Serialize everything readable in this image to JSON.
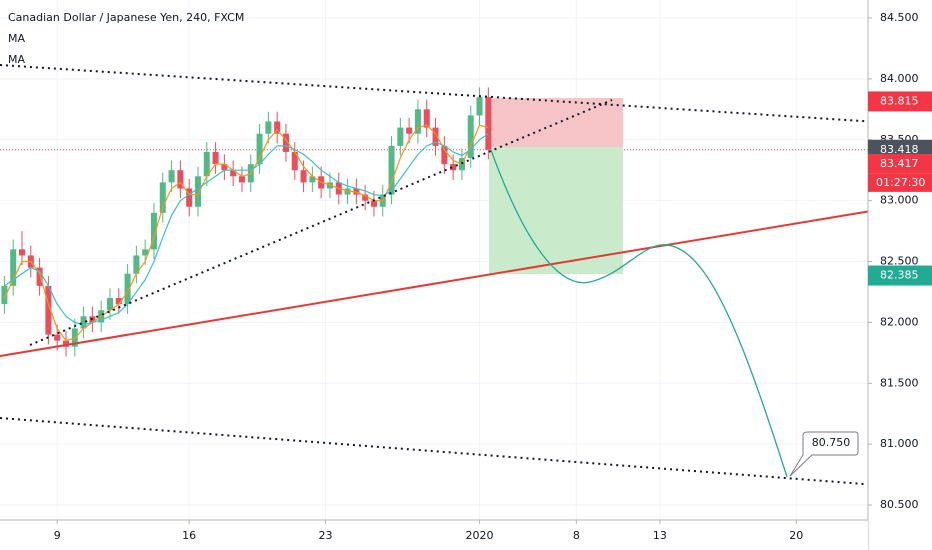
{
  "chart_data": {
    "type": "candlestick",
    "title": "Canadian Dollar / Japanese Yen, 240, FXCM",
    "indicators": [
      "MA",
      "MA"
    ],
    "x": [
      1,
      3,
      5,
      7,
      9,
      11,
      13,
      15,
      17,
      19,
      21,
      23,
      25,
      27,
      29,
      31,
      33,
      35,
      37,
      39,
      41,
      43,
      45,
      47,
      49,
      51,
      53,
      55,
      57,
      59,
      61,
      63,
      65,
      67,
      69,
      71,
      73,
      75,
      77,
      79,
      81,
      83,
      85,
      87,
      89,
      91,
      93,
      95,
      97,
      99,
      101,
      103,
      105,
      107,
      109,
      111
    ],
    "candles": [
      [
        82.15,
        82.38,
        82.07,
        82.3
      ],
      [
        82.3,
        82.68,
        82.22,
        82.6
      ],
      [
        82.6,
        82.75,
        82.47,
        82.55
      ],
      [
        82.55,
        82.63,
        82.37,
        82.45
      ],
      [
        82.45,
        82.53,
        82.22,
        82.3
      ],
      [
        82.3,
        82.38,
        81.82,
        81.9
      ],
      [
        81.9,
        81.98,
        81.77,
        81.85
      ],
      [
        81.85,
        81.93,
        81.72,
        81.8
      ],
      [
        81.8,
        82.03,
        81.72,
        81.95
      ],
      [
        81.95,
        82.13,
        81.87,
        82.05
      ],
      [
        82.05,
        82.13,
        81.92,
        82.0
      ],
      [
        82.0,
        82.18,
        81.92,
        82.1
      ],
      [
        82.1,
        82.28,
        82.02,
        82.2
      ],
      [
        82.2,
        82.28,
        82.07,
        82.15
      ],
      [
        82.15,
        82.48,
        82.07,
        82.4
      ],
      [
        82.4,
        82.63,
        82.32,
        82.55
      ],
      [
        82.55,
        82.68,
        82.47,
        82.6
      ],
      [
        82.6,
        82.98,
        82.52,
        82.9
      ],
      [
        82.9,
        83.23,
        82.82,
        83.15
      ],
      [
        83.15,
        83.33,
        83.07,
        83.25
      ],
      [
        83.25,
        83.33,
        83.02,
        83.1
      ],
      [
        83.1,
        83.18,
        82.87,
        82.95
      ],
      [
        82.95,
        83.28,
        82.87,
        83.2
      ],
      [
        83.2,
        83.48,
        83.12,
        83.4
      ],
      [
        83.4,
        83.48,
        83.22,
        83.3
      ],
      [
        83.3,
        83.38,
        83.17,
        83.25
      ],
      [
        83.25,
        83.33,
        83.12,
        83.2
      ],
      [
        83.2,
        83.28,
        83.07,
        83.15
      ],
      [
        83.15,
        83.38,
        83.07,
        83.3
      ],
      [
        83.3,
        83.63,
        83.22,
        83.55
      ],
      [
        83.55,
        83.73,
        83.47,
        83.65
      ],
      [
        83.65,
        83.73,
        83.47,
        83.55
      ],
      [
        83.55,
        83.63,
        83.32,
        83.4
      ],
      [
        83.4,
        83.48,
        83.17,
        83.25
      ],
      [
        83.25,
        83.33,
        83.07,
        83.15
      ],
      [
        83.15,
        83.28,
        83.07,
        83.2
      ],
      [
        83.2,
        83.28,
        83.02,
        83.1
      ],
      [
        83.1,
        83.23,
        83.02,
        83.15
      ],
      [
        83.15,
        83.23,
        82.97,
        83.05
      ],
      [
        83.05,
        83.18,
        82.97,
        83.1
      ],
      [
        83.1,
        83.18,
        82.97,
        83.05
      ],
      [
        83.05,
        83.13,
        82.92,
        83.0
      ],
      [
        83.0,
        83.08,
        82.87,
        82.95
      ],
      [
        82.95,
        83.13,
        82.87,
        83.05
      ],
      [
        83.05,
        83.53,
        82.97,
        83.45
      ],
      [
        83.45,
        83.68,
        83.37,
        83.6
      ],
      [
        83.6,
        83.68,
        83.47,
        83.55
      ],
      [
        83.55,
        83.83,
        83.47,
        83.75
      ],
      [
        83.75,
        83.83,
        83.52,
        83.6
      ],
      [
        83.6,
        83.68,
        83.37,
        83.45
      ],
      [
        83.45,
        83.53,
        83.22,
        83.3
      ],
      [
        83.3,
        83.38,
        83.17,
        83.25
      ],
      [
        83.25,
        83.43,
        83.17,
        83.35
      ],
      [
        83.35,
        83.78,
        83.27,
        83.7
      ],
      [
        83.7,
        83.93,
        83.62,
        83.85
      ],
      [
        83.85,
        83.93,
        83.34,
        83.418
      ]
    ],
    "up_color": "#53b987",
    "down_color": "#eb4d5c",
    "series": [
      {
        "color": "#f7931a",
        "values": [
          82.2,
          82.35,
          82.5,
          82.5,
          82.4,
          82.15,
          81.95,
          81.85,
          81.87,
          81.95,
          82.0,
          82.05,
          82.1,
          82.15,
          82.25,
          82.4,
          82.5,
          82.7,
          82.95,
          83.1,
          83.15,
          83.05,
          83.05,
          83.2,
          83.3,
          83.3,
          83.25,
          83.2,
          83.22,
          83.35,
          83.5,
          83.58,
          83.5,
          83.4,
          83.28,
          83.2,
          83.15,
          83.13,
          83.1,
          83.08,
          83.07,
          83.04,
          83.0,
          83.0,
          83.15,
          83.35,
          83.5,
          83.6,
          83.62,
          83.55,
          83.42,
          83.33,
          83.3,
          83.45,
          83.62,
          83.6
        ]
      },
      {
        "color": "#3cc0c9",
        "values": [
          82.3,
          82.35,
          82.4,
          82.45,
          82.42,
          82.3,
          82.15,
          82.05,
          82.0,
          81.98,
          82.0,
          82.02,
          82.05,
          82.08,
          82.15,
          82.25,
          82.35,
          82.5,
          82.7,
          82.88,
          83.0,
          83.05,
          83.1,
          83.15,
          83.2,
          83.25,
          83.25,
          83.25,
          83.25,
          83.3,
          83.38,
          83.45,
          83.45,
          83.42,
          83.38,
          83.32,
          83.25,
          83.2,
          83.15,
          83.12,
          83.1,
          83.08,
          83.05,
          83.04,
          83.08,
          83.18,
          83.28,
          83.38,
          83.45,
          83.48,
          83.45,
          83.4,
          83.37,
          83.42,
          83.5,
          83.55
        ]
      }
    ],
    "xlim": [
      0,
      197.3
    ],
    "xticks": [
      {
        "value": 13,
        "label": "9"
      },
      {
        "value": 43,
        "label": "16"
      },
      {
        "value": 74,
        "label": "23"
      },
      {
        "value": 109,
        "label": "2020"
      },
      {
        "value": 131,
        "label": "8"
      },
      {
        "value": 150,
        "label": "13"
      },
      {
        "value": 181,
        "label": "20"
      }
    ],
    "ylim": [
      80.377,
      84.648
    ],
    "yticks": [
      {
        "value": 84.5,
        "label": "84.500"
      },
      {
        "value": 84.0,
        "label": "84.000"
      },
      {
        "value": 83.5,
        "label": "83.500"
      },
      {
        "value": 83.0,
        "label": "83.000"
      },
      {
        "value": 82.5,
        "label": "82.500"
      },
      {
        "value": 82.0,
        "label": "82.000"
      },
      {
        "value": 81.5,
        "label": "81.500"
      },
      {
        "value": 81.0,
        "label": "81.000"
      },
      {
        "value": 80.5,
        "label": "80.500"
      }
    ],
    "grid": true,
    "price_badges": [
      {
        "value": 83.815,
        "label": "83.815",
        "color": "#f23645"
      },
      {
        "value": 83.418,
        "label": "83.418",
        "color": "#4c525e"
      },
      {
        "value": 83.417,
        "label": "83.417",
        "color": "#f23645"
      },
      {
        "value": 82.385,
        "label": "82.385",
        "color": "#22ab94"
      }
    ],
    "countdown": "01:27:30",
    "annotation": {
      "value": 80.75,
      "label": "80.750"
    }
  }
}
